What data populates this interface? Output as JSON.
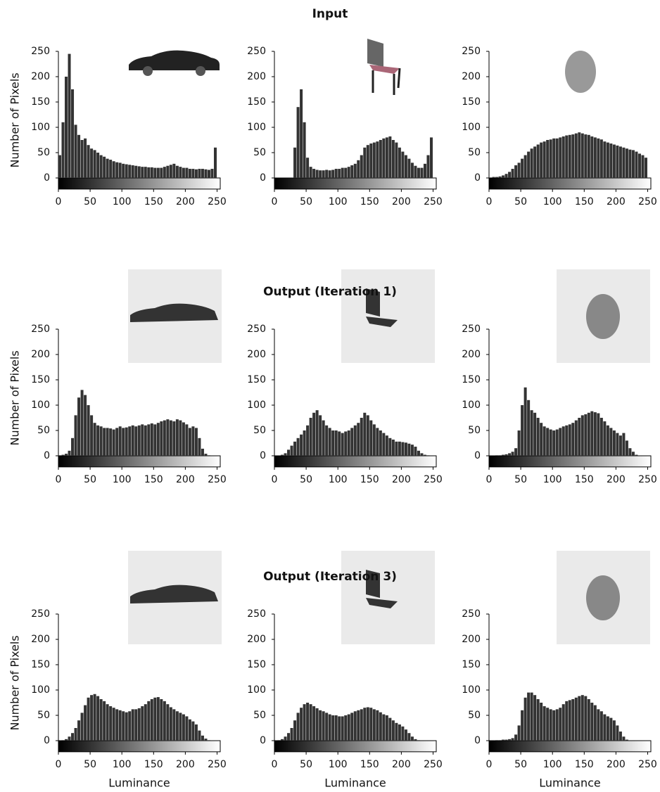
{
  "chart_data": [
    {
      "type": "histogram",
      "ylabel": "Number of Pixels",
      "color": "#333333",
      "xlim": [
        0,
        255
      ],
      "ylim": [
        -22,
        250
      ],
      "xticks": [
        0,
        50,
        100,
        150,
        200,
        250
      ],
      "yticks": [
        0,
        50,
        100,
        150,
        200,
        250
      ],
      "bins": [
        0,
        5,
        10,
        15,
        20,
        25,
        30,
        35,
        40,
        45,
        50,
        55,
        60,
        65,
        70,
        75,
        80,
        85,
        90,
        95,
        100,
        105,
        110,
        115,
        120,
        125,
        130,
        135,
        140,
        145,
        150,
        155,
        160,
        165,
        170,
        175,
        180,
        185,
        190,
        195,
        200,
        205,
        210,
        215,
        220,
        225,
        230,
        235,
        240,
        245,
        250
      ],
      "values": [
        45,
        110,
        200,
        245,
        175,
        105,
        85,
        75,
        78,
        65,
        58,
        55,
        50,
        45,
        42,
        38,
        36,
        33,
        31,
        30,
        28,
        27,
        26,
        25,
        24,
        23,
        22,
        22,
        21,
        21,
        20,
        20,
        20,
        22,
        24,
        26,
        28,
        24,
        22,
        20,
        20,
        18,
        18,
        17,
        18,
        18,
        17,
        16,
        18,
        60
      ]
    },
    {
      "type": "histogram",
      "title": "Input",
      "color": "#333333",
      "xlim": [
        0,
        255
      ],
      "ylim": [
        -22,
        250
      ],
      "xticks": [
        0,
        50,
        100,
        150,
        200,
        250
      ],
      "yticks": [
        0,
        50,
        100,
        150,
        200,
        250
      ],
      "bins": [
        0,
        5,
        10,
        15,
        20,
        25,
        30,
        35,
        40,
        45,
        50,
        55,
        60,
        65,
        70,
        75,
        80,
        85,
        90,
        95,
        100,
        105,
        110,
        115,
        120,
        125,
        130,
        135,
        140,
        145,
        150,
        155,
        160,
        165,
        170,
        175,
        180,
        185,
        190,
        195,
        200,
        205,
        210,
        215,
        220,
        225,
        230,
        235,
        240,
        245,
        250
      ],
      "values": [
        0,
        0,
        0,
        0,
        0,
        0,
        60,
        140,
        175,
        110,
        40,
        22,
        18,
        16,
        15,
        15,
        16,
        15,
        16,
        18,
        18,
        20,
        20,
        22,
        25,
        28,
        35,
        45,
        60,
        65,
        68,
        70,
        72,
        75,
        78,
        80,
        82,
        75,
        70,
        60,
        52,
        45,
        38,
        30,
        24,
        20,
        20,
        28,
        45,
        80
      ]
    },
    {
      "type": "histogram",
      "color": "#333333",
      "xlim": [
        0,
        255
      ],
      "ylim": [
        -22,
        250
      ],
      "xticks": [
        0,
        50,
        100,
        150,
        200,
        250
      ],
      "yticks": [
        0,
        50,
        100,
        150,
        200,
        250
      ],
      "bins": [
        0,
        5,
        10,
        15,
        20,
        25,
        30,
        35,
        40,
        45,
        50,
        55,
        60,
        65,
        70,
        75,
        80,
        85,
        90,
        95,
        100,
        105,
        110,
        115,
        120,
        125,
        130,
        135,
        140,
        145,
        150,
        155,
        160,
        165,
        170,
        175,
        180,
        185,
        190,
        195,
        200,
        205,
        210,
        215,
        220,
        225,
        230,
        235,
        240,
        245,
        250
      ],
      "values": [
        1,
        2,
        2,
        3,
        5,
        8,
        12,
        18,
        25,
        30,
        38,
        45,
        52,
        58,
        62,
        66,
        70,
        72,
        75,
        76,
        78,
        78,
        80,
        82,
        84,
        85,
        86,
        88,
        90,
        88,
        86,
        85,
        82,
        80,
        78,
        76,
        72,
        70,
        68,
        66,
        64,
        62,
        60,
        58,
        56,
        55,
        52,
        48,
        45,
        40
      ]
    },
    {
      "type": "histogram",
      "ylabel": "Number of Pixels",
      "color": "#333333",
      "xlim": [
        0,
        255
      ],
      "ylim": [
        -22,
        250
      ],
      "xticks": [
        0,
        50,
        100,
        150,
        200,
        250
      ],
      "yticks": [
        0,
        50,
        100,
        150,
        200,
        250
      ],
      "bins": [
        0,
        5,
        10,
        15,
        20,
        25,
        30,
        35,
        40,
        45,
        50,
        55,
        60,
        65,
        70,
        75,
        80,
        85,
        90,
        95,
        100,
        105,
        110,
        115,
        120,
        125,
        130,
        135,
        140,
        145,
        150,
        155,
        160,
        165,
        170,
        175,
        180,
        185,
        190,
        195,
        200,
        205,
        210,
        215,
        220,
        225,
        230,
        235,
        240,
        245,
        250
      ],
      "values": [
        1,
        2,
        4,
        10,
        35,
        80,
        115,
        130,
        120,
        100,
        80,
        65,
        60,
        58,
        55,
        55,
        54,
        52,
        55,
        58,
        55,
        56,
        58,
        60,
        58,
        60,
        62,
        60,
        62,
        64,
        62,
        65,
        68,
        70,
        72,
        70,
        68,
        72,
        70,
        66,
        62,
        55,
        58,
        55,
        35,
        14,
        4,
        1,
        0,
        0
      ]
    },
    {
      "type": "histogram",
      "title": "Output (Iteration 1)",
      "color": "#333333",
      "xlim": [
        0,
        255
      ],
      "ylim": [
        -22,
        250
      ],
      "xticks": [
        0,
        50,
        100,
        150,
        200,
        250
      ],
      "yticks": [
        0,
        50,
        100,
        150,
        200,
        250
      ],
      "bins": [
        0,
        5,
        10,
        15,
        20,
        25,
        30,
        35,
        40,
        45,
        50,
        55,
        60,
        65,
        70,
        75,
        80,
        85,
        90,
        95,
        100,
        105,
        110,
        115,
        120,
        125,
        130,
        135,
        140,
        145,
        150,
        155,
        160,
        165,
        170,
        175,
        180,
        185,
        190,
        195,
        200,
        205,
        210,
        215,
        220,
        225,
        230,
        235,
        240,
        245,
        250
      ],
      "values": [
        0,
        0,
        2,
        5,
        12,
        20,
        28,
        35,
        42,
        50,
        60,
        75,
        85,
        90,
        80,
        70,
        60,
        55,
        50,
        50,
        48,
        45,
        48,
        50,
        55,
        60,
        65,
        75,
        85,
        80,
        70,
        62,
        55,
        50,
        45,
        40,
        35,
        32,
        28,
        28,
        27,
        26,
        24,
        22,
        18,
        10,
        5,
        2,
        1,
        0
      ]
    },
    {
      "type": "histogram",
      "color": "#333333",
      "xlim": [
        0,
        255
      ],
      "ylim": [
        -22,
        250
      ],
      "xticks": [
        0,
        50,
        100,
        150,
        200,
        250
      ],
      "yticks": [
        0,
        50,
        100,
        150,
        200,
        250
      ],
      "bins": [
        0,
        5,
        10,
        15,
        20,
        25,
        30,
        35,
        40,
        45,
        50,
        55,
        60,
        65,
        70,
        75,
        80,
        85,
        90,
        95,
        100,
        105,
        110,
        115,
        120,
        125,
        130,
        135,
        140,
        145,
        150,
        155,
        160,
        165,
        170,
        175,
        180,
        185,
        190,
        195,
        200,
        205,
        210,
        215,
        220,
        225,
        230,
        235,
        240,
        245,
        250
      ],
      "values": [
        0,
        0,
        1,
        1,
        2,
        3,
        5,
        8,
        15,
        50,
        100,
        135,
        110,
        90,
        85,
        75,
        65,
        58,
        55,
        52,
        50,
        52,
        55,
        58,
        60,
        62,
        65,
        70,
        75,
        80,
        82,
        85,
        88,
        86,
        84,
        75,
        68,
        60,
        55,
        50,
        45,
        40,
        45,
        30,
        15,
        8,
        2,
        0,
        0,
        0
      ]
    },
    {
      "type": "histogram",
      "ylabel": "Number of Pixels",
      "xlabel": "Luminance",
      "color": "#333333",
      "xlim": [
        0,
        255
      ],
      "ylim": [
        -22,
        250
      ],
      "xticks": [
        0,
        50,
        100,
        150,
        200,
        250
      ],
      "yticks": [
        0,
        50,
        100,
        150,
        200,
        250
      ],
      "bins": [
        0,
        5,
        10,
        15,
        20,
        25,
        30,
        35,
        40,
        45,
        50,
        55,
        60,
        65,
        70,
        75,
        80,
        85,
        90,
        95,
        100,
        105,
        110,
        115,
        120,
        125,
        130,
        135,
        140,
        145,
        150,
        155,
        160,
        165,
        170,
        175,
        180,
        185,
        190,
        195,
        200,
        205,
        210,
        215,
        220,
        225,
        230,
        235,
        240,
        245,
        250
      ],
      "values": [
        0,
        1,
        3,
        8,
        15,
        25,
        40,
        55,
        70,
        85,
        90,
        92,
        88,
        82,
        78,
        72,
        68,
        65,
        62,
        60,
        58,
        56,
        58,
        62,
        62,
        64,
        68,
        72,
        78,
        82,
        85,
        86,
        82,
        78,
        72,
        66,
        62,
        58,
        55,
        52,
        48,
        42,
        38,
        32,
        20,
        10,
        4,
        1,
        0,
        0
      ]
    },
    {
      "type": "histogram",
      "title": "Output (Iteration 3)",
      "xlabel": "Luminance",
      "color": "#333333",
      "xlim": [
        0,
        255
      ],
      "ylim": [
        -22,
        250
      ],
      "xticks": [
        0,
        50,
        100,
        150,
        200,
        250
      ],
      "yticks": [
        0,
        50,
        100,
        150,
        200,
        250
      ],
      "bins": [
        0,
        5,
        10,
        15,
        20,
        25,
        30,
        35,
        40,
        45,
        50,
        55,
        60,
        65,
        70,
        75,
        80,
        85,
        90,
        95,
        100,
        105,
        110,
        115,
        120,
        125,
        130,
        135,
        140,
        145,
        150,
        155,
        160,
        165,
        170,
        175,
        180,
        185,
        190,
        195,
        200,
        205,
        210,
        215,
        220,
        225,
        230,
        235,
        240,
        245,
        250
      ],
      "values": [
        0,
        1,
        3,
        8,
        15,
        25,
        40,
        55,
        65,
        72,
        75,
        72,
        68,
        64,
        60,
        58,
        55,
        52,
        50,
        50,
        48,
        48,
        50,
        52,
        55,
        58,
        60,
        62,
        65,
        66,
        65,
        62,
        60,
        56,
        52,
        50,
        45,
        40,
        35,
        32,
        28,
        22,
        15,
        8,
        3,
        1,
        0,
        0,
        0,
        0
      ]
    },
    {
      "type": "histogram",
      "xlabel": "Luminance",
      "color": "#333333",
      "xlim": [
        0,
        255
      ],
      "ylim": [
        -22,
        250
      ],
      "xticks": [
        0,
        50,
        100,
        150,
        200,
        250
      ],
      "yticks": [
        0,
        50,
        100,
        150,
        200,
        250
      ],
      "bins": [
        0,
        5,
        10,
        15,
        20,
        25,
        30,
        35,
        40,
        45,
        50,
        55,
        60,
        65,
        70,
        75,
        80,
        85,
        90,
        95,
        100,
        105,
        110,
        115,
        120,
        125,
        130,
        135,
        140,
        145,
        150,
        155,
        160,
        165,
        170,
        175,
        180,
        185,
        190,
        195,
        200,
        205,
        210,
        215,
        220,
        225,
        230,
        235,
        240,
        245,
        250
      ],
      "values": [
        0,
        0,
        1,
        1,
        2,
        2,
        3,
        5,
        12,
        30,
        60,
        85,
        95,
        95,
        90,
        82,
        75,
        68,
        65,
        62,
        60,
        62,
        65,
        72,
        78,
        80,
        82,
        85,
        88,
        90,
        88,
        82,
        75,
        70,
        62,
        58,
        52,
        48,
        45,
        40,
        30,
        18,
        8,
        2,
        0,
        0,
        0,
        0,
        0,
        0
      ]
    }
  ]
}
